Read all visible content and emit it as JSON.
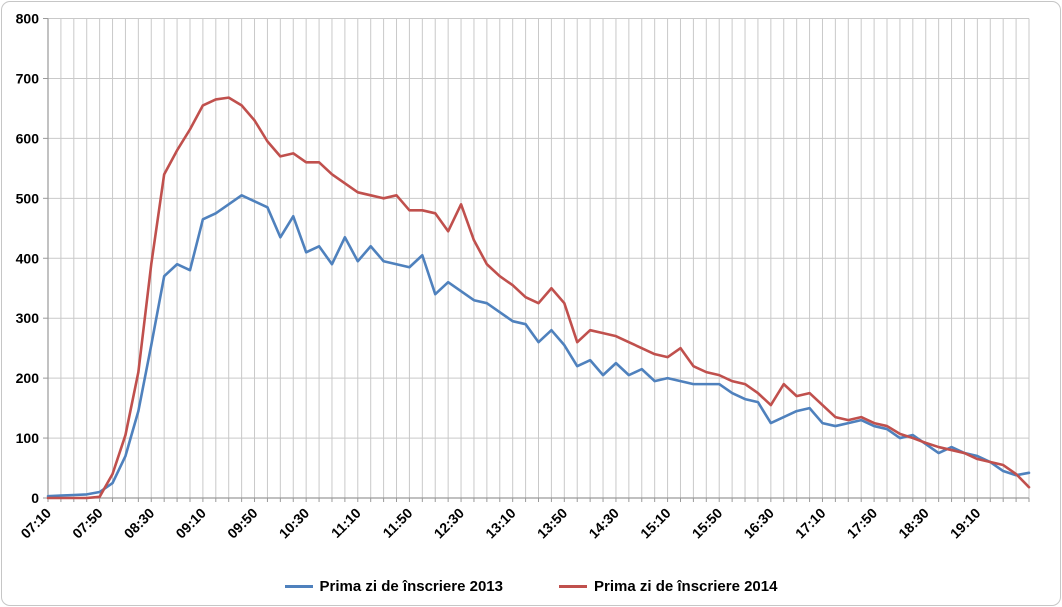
{
  "chart": {
    "background": "#FFFFFF",
    "border_color": "#C6C6C6",
    "gridline_color": "#C9C9C9",
    "axis_color": "#9A9A9A"
  },
  "chart_data": {
    "type": "line",
    "title": "",
    "xlabel": "",
    "ylabel": "",
    "grid": true,
    "legend_position": "bottom",
    "y_min": 0,
    "y_max": 800,
    "y_step": 100,
    "y_tick_labels": [
      "0",
      "100",
      "200",
      "300",
      "400",
      "500",
      "600",
      "700",
      "800"
    ],
    "x_categories": [
      "07:10",
      "07:20",
      "07:30",
      "07:40",
      "07:50",
      "08:00",
      "08:10",
      "08:20",
      "08:30",
      "08:40",
      "08:50",
      "09:00",
      "09:10",
      "09:20",
      "09:30",
      "09:40",
      "09:50",
      "10:00",
      "10:10",
      "10:20",
      "10:30",
      "10:40",
      "10:50",
      "11:00",
      "11:10",
      "11:20",
      "11:30",
      "11:40",
      "11:50",
      "12:00",
      "12:10",
      "12:20",
      "12:30",
      "12:40",
      "12:50",
      "13:00",
      "13:10",
      "13:20",
      "13:30",
      "13:40",
      "13:50",
      "14:00",
      "14:10",
      "14:20",
      "14:30",
      "14:40",
      "14:50",
      "15:00",
      "15:10",
      "15:20",
      "15:30",
      "15:40",
      "15:50",
      "16:00",
      "16:10",
      "16:20",
      "16:30",
      "16:40",
      "16:50",
      "17:00",
      "17:10",
      "17:20",
      "17:30",
      "17:40",
      "17:50",
      "18:00",
      "18:10",
      "18:20",
      "18:30",
      "18:40",
      "18:50",
      "19:00",
      "19:10",
      "19:20",
      "19:30",
      "19:40",
      "19:50"
    ],
    "x_ticks": [
      {
        "index": 0,
        "label": "07:10"
      },
      {
        "index": 4,
        "label": "07:50"
      },
      {
        "index": 8,
        "label": "08:30"
      },
      {
        "index": 12,
        "label": "09:10"
      },
      {
        "index": 16,
        "label": "09:50"
      },
      {
        "index": 20,
        "label": "10:30"
      },
      {
        "index": 24,
        "label": "11:10"
      },
      {
        "index": 28,
        "label": "11:50"
      },
      {
        "index": 32,
        "label": "12:30"
      },
      {
        "index": 36,
        "label": "13:10"
      },
      {
        "index": 40,
        "label": "13:50"
      },
      {
        "index": 44,
        "label": "14:30"
      },
      {
        "index": 48,
        "label": "15:10"
      },
      {
        "index": 52,
        "label": "15:50"
      },
      {
        "index": 56,
        "label": "16:30"
      },
      {
        "index": 60,
        "label": "17:10"
      },
      {
        "index": 64,
        "label": "17:50"
      },
      {
        "index": 68,
        "label": "18:30"
      },
      {
        "index": 72,
        "label": "19:10"
      }
    ],
    "series": [
      {
        "name": "Prima zi de înscriere 2013",
        "color": "#4F81BD",
        "values": [
          3,
          4,
          5,
          6,
          10,
          25,
          70,
          145,
          255,
          370,
          390,
          380,
          465,
          475,
          490,
          505,
          495,
          485,
          435,
          470,
          410,
          420,
          390,
          435,
          395,
          420,
          395,
          390,
          385,
          405,
          340,
          360,
          345,
          330,
          325,
          310,
          295,
          290,
          260,
          280,
          255,
          220,
          230,
          205,
          225,
          205,
          215,
          195,
          200,
          195,
          190,
          190,
          190,
          175,
          165,
          160,
          125,
          135,
          145,
          150,
          125,
          120,
          125,
          130,
          120,
          115,
          100,
          105,
          90,
          75,
          85,
          75,
          70,
          60,
          45,
          38,
          42
        ]
      },
      {
        "name": "Prima zi de înscriere 2014",
        "color": "#C0504D",
        "values": [
          0,
          0,
          0,
          0,
          2,
          40,
          105,
          210,
          390,
          540,
          580,
          615,
          655,
          665,
          668,
          655,
          630,
          595,
          570,
          575,
          560,
          560,
          540,
          525,
          510,
          505,
          500,
          505,
          480,
          480,
          475,
          445,
          490,
          430,
          390,
          370,
          355,
          335,
          325,
          350,
          325,
          260,
          280,
          275,
          270,
          260,
          250,
          240,
          235,
          250,
          220,
          210,
          205,
          195,
          190,
          175,
          155,
          190,
          170,
          175,
          155,
          135,
          130,
          135,
          125,
          120,
          107,
          100,
          92,
          85,
          80,
          75,
          65,
          60,
          55,
          40,
          18
        ]
      }
    ]
  }
}
